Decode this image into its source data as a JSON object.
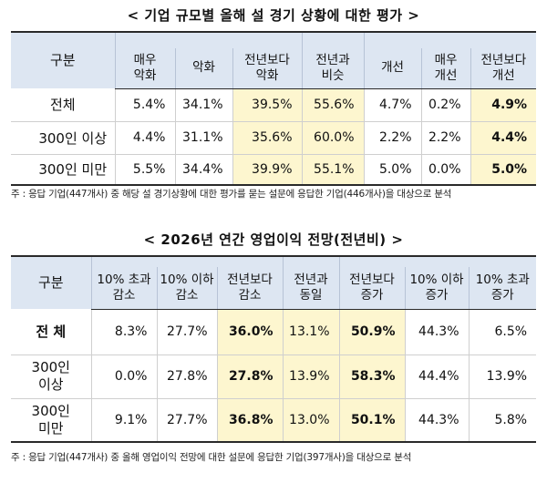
{
  "table1": {
    "title": "< 기업 규모별 올해 설 경기 상황에 대한 평가 >",
    "stub_header": "구분",
    "columns": [
      "매우\n악화",
      "악화",
      "전년보다\n악화",
      "전년과\n비슷",
      "개선",
      "매우\n개선",
      "전년보다\n개선"
    ],
    "rows": [
      {
        "label": "전체",
        "values": [
          "5.4%",
          "34.1%",
          "39.5%",
          "55.6%",
          "4.7%",
          "0.2%",
          "4.9%"
        ]
      },
      {
        "label": "300인 이상",
        "values": [
          "4.4%",
          "31.1%",
          "35.6%",
          "60.0%",
          "2.2%",
          "2.2%",
          "4.4%"
        ]
      },
      {
        "label": "300인 미만",
        "values": [
          "5.5%",
          "34.4%",
          "39.9%",
          "55.1%",
          "5.0%",
          "0.0%",
          "5.0%"
        ]
      }
    ],
    "note": "주 : 응답 기업(447개사) 중 해당 설 경기상황에 대한 평가를 묻는 설문에 응답한 기업(446개사)을 대상으로 분석"
  },
  "table2": {
    "title": "< 2026년 연간 영업이익 전망(전년비) >",
    "stub_header": "구분",
    "columns": [
      "10% 초과\n감소",
      "10% 이하\n감소",
      "전년보다\n감소",
      "전년과\n동일",
      "전년보다\n증가",
      "10% 이하\n증가",
      "10% 초과\n증가"
    ],
    "rows": [
      {
        "label": "전 체",
        "values": [
          "8.3%",
          "27.7%",
          "36.0%",
          "13.1%",
          "50.9%",
          "44.3%",
          "6.5%"
        ]
      },
      {
        "label": "300인\n이상",
        "values": [
          "0.0%",
          "27.8%",
          "27.8%",
          "13.9%",
          "58.3%",
          "44.4%",
          "13.9%"
        ]
      },
      {
        "label": "300인\n미만",
        "values": [
          "9.1%",
          "27.7%",
          "36.8%",
          "13.0%",
          "50.1%",
          "44.3%",
          "5.8%"
        ]
      }
    ],
    "note": "주 : 응답 기업(447개사) 중 올해 영업이익 전망에 대한 설문에 응답한 기업(397개사)을 대상으로 분석"
  }
}
